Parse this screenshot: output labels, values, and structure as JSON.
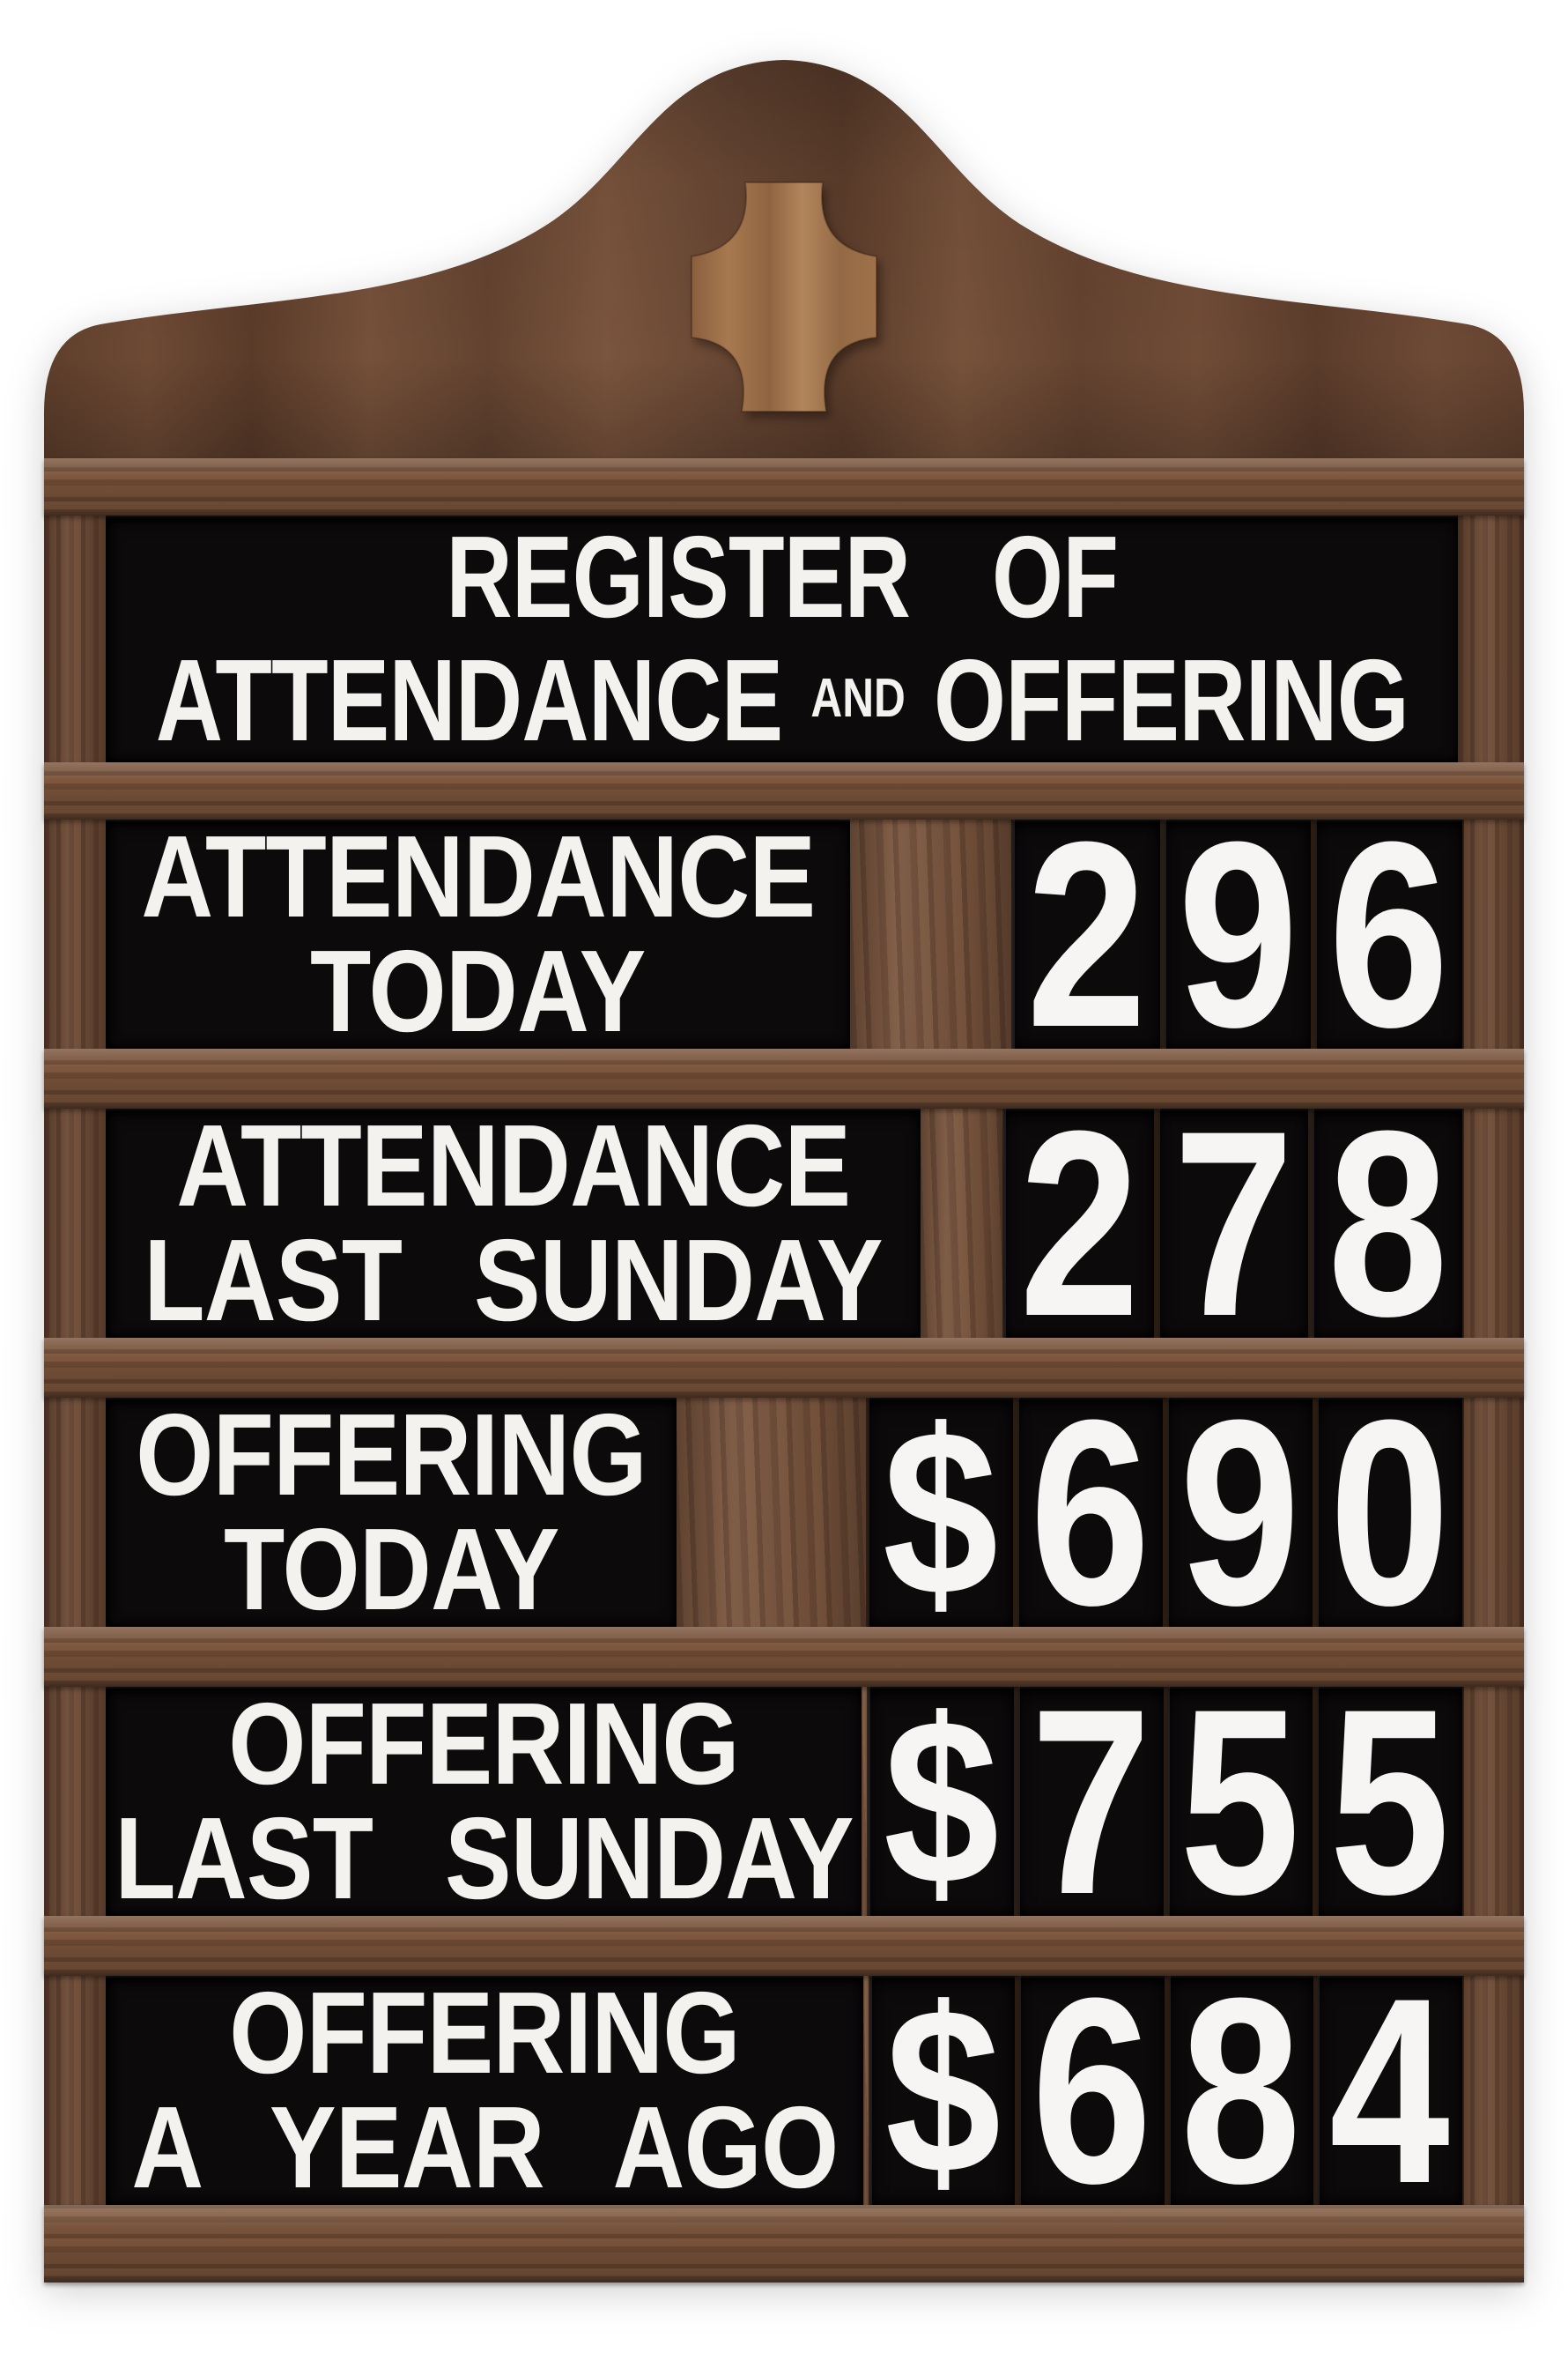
{
  "board": {
    "kind": "church attendance register letter board",
    "title": {
      "line1": "REGISTER OF",
      "line2_left": "ATTENDANCE",
      "line2_and": "AND",
      "line2_right": "OFFERING"
    },
    "rows": [
      {
        "id": "attendance-today",
        "label_line1": "ATTENDANCE",
        "label_line2": "TODAY",
        "value": "296"
      },
      {
        "id": "attendance-last-sunday",
        "label_line1": "ATTENDANCE",
        "label_line2": "LAST SUNDAY",
        "value": "278"
      },
      {
        "id": "offering-today",
        "label_line1": "OFFERING",
        "label_line2": "TODAY",
        "value": "$690"
      },
      {
        "id": "offering-last-sunday",
        "label_line1": "OFFERING",
        "label_line2": "LAST SUNDAY",
        "value": "$755"
      },
      {
        "id": "offering-a-year-ago",
        "label_line1": "OFFERING",
        "label_line2": "A YEAR AGO",
        "value": "$684"
      }
    ],
    "icons": {
      "cross": "cross-icon"
    },
    "colors": {
      "wood_dark": "#69462f",
      "wood_rail": "#78523a",
      "wood_cross": "#a0714a",
      "panel_black": "#0d0a0c",
      "letter_white": "#f3f2ef",
      "background": "#ffffff"
    }
  }
}
